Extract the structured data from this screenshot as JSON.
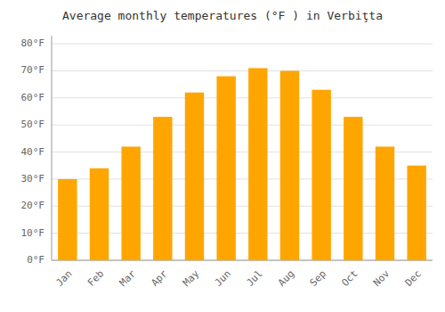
{
  "chart_data": {
    "type": "bar",
    "title": "Average monthly temperatures (°F ) in Verbiţta",
    "categories": [
      "Jan",
      "Feb",
      "Mar",
      "Apr",
      "May",
      "Jun",
      "Jul",
      "Aug",
      "Sep",
      "Oct",
      "Nov",
      "Dec"
    ],
    "values": [
      30,
      34,
      42,
      53,
      62,
      68,
      71,
      70,
      63,
      53,
      42,
      35
    ],
    "color": "#FFA500",
    "ylim": [
      0,
      83
    ],
    "yticks": [
      {
        "value": 0,
        "label": "0°F"
      },
      {
        "value": 10,
        "label": "10°F"
      },
      {
        "value": 20,
        "label": "20°F"
      },
      {
        "value": 30,
        "label": "30°F"
      },
      {
        "value": 40,
        "label": "40°F"
      },
      {
        "value": 50,
        "label": "50°F"
      },
      {
        "value": 60,
        "label": "60°F"
      },
      {
        "value": 70,
        "label": "70°F"
      },
      {
        "value": 80,
        "label": "80°F"
      }
    ],
    "grid": true
  }
}
